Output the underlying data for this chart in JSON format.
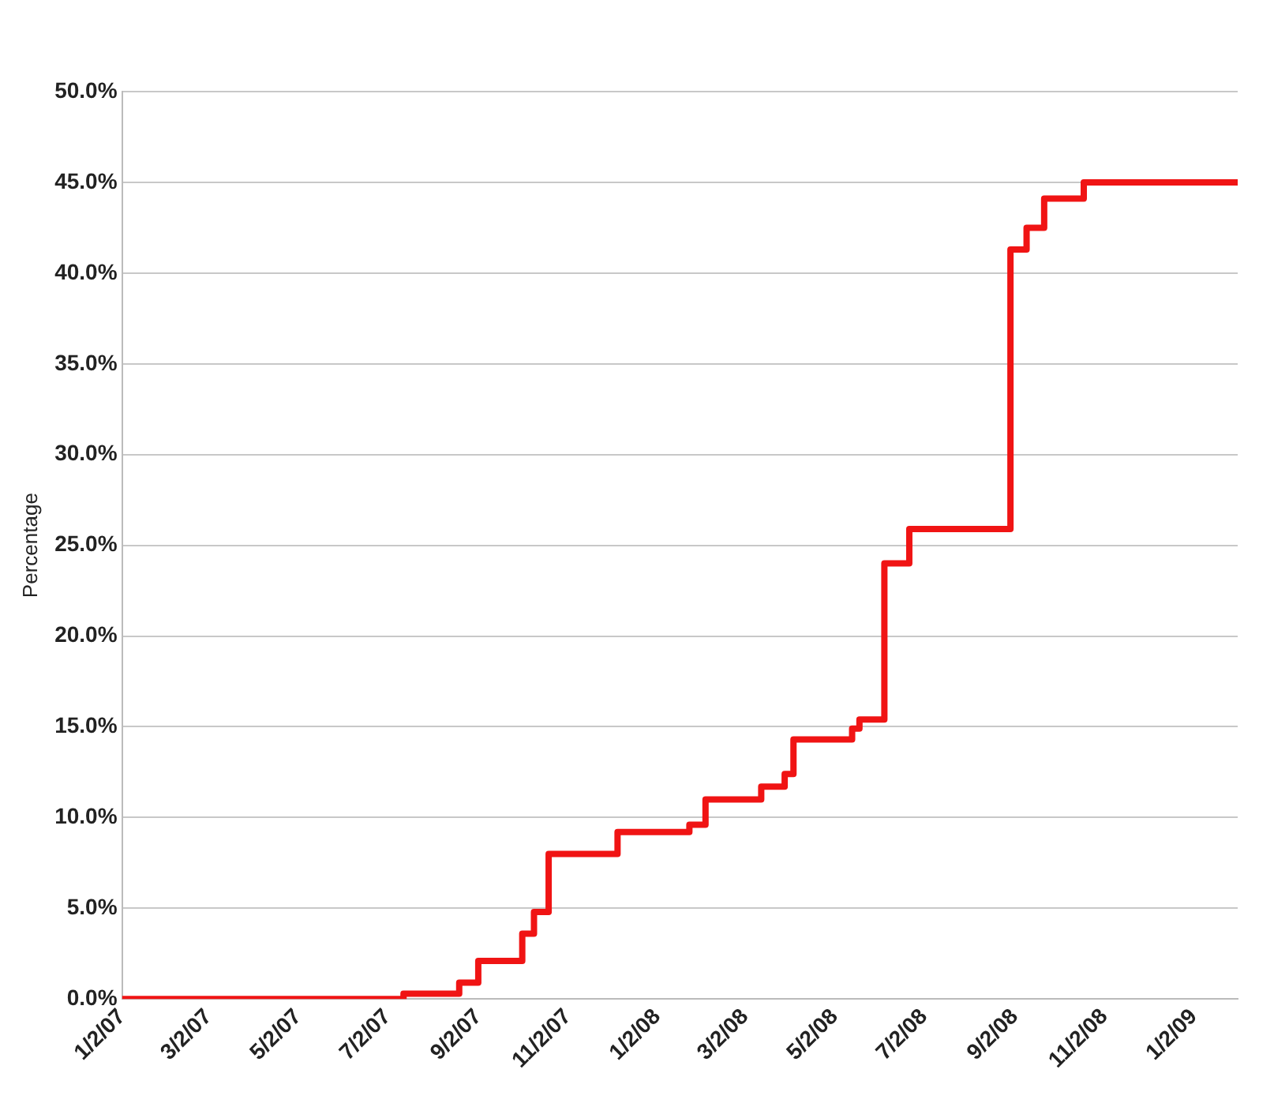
{
  "chart_data": {
    "type": "step",
    "ylabel": "Percentage",
    "x": [
      "2007-01-02",
      "2007-07-13",
      "2007-08-20",
      "2007-09-02",
      "2007-10-02",
      "2007-10-10",
      "2007-10-20",
      "2007-12-06",
      "2008-01-24",
      "2008-02-04",
      "2008-03-13",
      "2008-03-29",
      "2008-04-04",
      "2008-05-14",
      "2008-05-19",
      "2008-06-05",
      "2008-06-22",
      "2008-08-30",
      "2008-09-10",
      "2008-09-22",
      "2008-10-19",
      "2009-02-01"
    ],
    "series": [
      {
        "color": "#f01414",
        "values": [
          0,
          0.3,
          0.9,
          2.1,
          3.6,
          4.8,
          8.0,
          9.2,
          9.6,
          11.0,
          11.7,
          12.4,
          14.3,
          14.9,
          15.4,
          24.0,
          25.9,
          41.3,
          42.5,
          44.1,
          45.0,
          45.0
        ]
      }
    ],
    "xlim": [
      "2007-01-02",
      "2009-02-01"
    ],
    "xticks": [
      {
        "value": "2007-01-02",
        "label": "1/2/07"
      },
      {
        "value": "2007-03-02",
        "label": "3/2/07"
      },
      {
        "value": "2007-05-02",
        "label": "5/2/07"
      },
      {
        "value": "2007-07-02",
        "label": "7/2/07"
      },
      {
        "value": "2007-09-02",
        "label": "9/2/07"
      },
      {
        "value": "2007-11-02",
        "label": "11/2/07"
      },
      {
        "value": "2008-01-02",
        "label": "1/2/08"
      },
      {
        "value": "2008-03-02",
        "label": "3/2/08"
      },
      {
        "value": "2008-05-02",
        "label": "5/2/08"
      },
      {
        "value": "2008-07-02",
        "label": "7/2/08"
      },
      {
        "value": "2008-09-02",
        "label": "9/2/08"
      },
      {
        "value": "2008-11-02",
        "label": "11/2/08"
      },
      {
        "value": "2009-01-02",
        "label": "1/2/09"
      }
    ],
    "ylim": [
      0,
      50
    ],
    "yticks": [
      {
        "value": 0,
        "label": "0.0%"
      },
      {
        "value": 5,
        "label": "5.0%"
      },
      {
        "value": 10,
        "label": "10.0%"
      },
      {
        "value": 15,
        "label": "15.0%"
      },
      {
        "value": 20,
        "label": "20.0%"
      },
      {
        "value": 25,
        "label": "25.0%"
      },
      {
        "value": 30,
        "label": "30.0%"
      },
      {
        "value": 35,
        "label": "35.0%"
      },
      {
        "value": 40,
        "label": "40.0%"
      },
      {
        "value": 45,
        "label": "45.0%"
      },
      {
        "value": 50,
        "label": "50.0%"
      }
    ],
    "grid": "y",
    "legend": false,
    "marker": "none",
    "line_style": "solid"
  }
}
